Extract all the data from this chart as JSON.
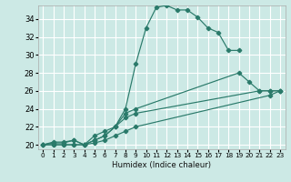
{
  "xlabel": "Humidex (Indice chaleur)",
  "bg_color": "#cce9e5",
  "grid_color": "#ffffff",
  "line_color": "#2a7a6a",
  "xlim": [
    -0.5,
    23.5
  ],
  "ylim": [
    19.5,
    35.5
  ],
  "xticks": [
    0,
    1,
    2,
    3,
    4,
    5,
    6,
    7,
    8,
    9,
    10,
    11,
    12,
    13,
    14,
    15,
    16,
    17,
    18,
    19,
    20,
    21,
    22,
    23
  ],
  "yticks": [
    20,
    22,
    24,
    26,
    28,
    30,
    32,
    34
  ],
  "lines": [
    {
      "x": [
        0,
        1,
        2,
        3,
        4,
        5,
        6,
        7,
        8,
        9,
        10,
        11,
        12,
        13,
        14,
        15,
        16,
        17,
        18,
        19
      ],
      "y": [
        20,
        20.3,
        20.3,
        20.5,
        20,
        20.5,
        21,
        22,
        24,
        29,
        33,
        35.3,
        35.5,
        35,
        35,
        34.2,
        33,
        32.5,
        30.5,
        30.5
      ]
    },
    {
      "x": [
        0,
        1,
        2,
        3,
        4,
        5,
        6,
        7,
        8,
        9,
        19,
        20,
        21,
        22,
        23
      ],
      "y": [
        20,
        20.2,
        20.2,
        20.5,
        20,
        21,
        21.5,
        22,
        23.5,
        24,
        28,
        27,
        26,
        26,
        26
      ]
    },
    {
      "x": [
        0,
        1,
        2,
        3,
        4,
        5,
        6,
        7,
        8,
        9,
        21,
        22,
        23
      ],
      "y": [
        20,
        20,
        20,
        20,
        20,
        20.5,
        21,
        22,
        23,
        23.5,
        26,
        26,
        26
      ]
    },
    {
      "x": [
        0,
        1,
        2,
        3,
        4,
        5,
        6,
        7,
        8,
        9,
        22,
        23
      ],
      "y": [
        20,
        20,
        20,
        20,
        20,
        20.2,
        20.5,
        21,
        21.5,
        22,
        25.5,
        26
      ]
    }
  ]
}
